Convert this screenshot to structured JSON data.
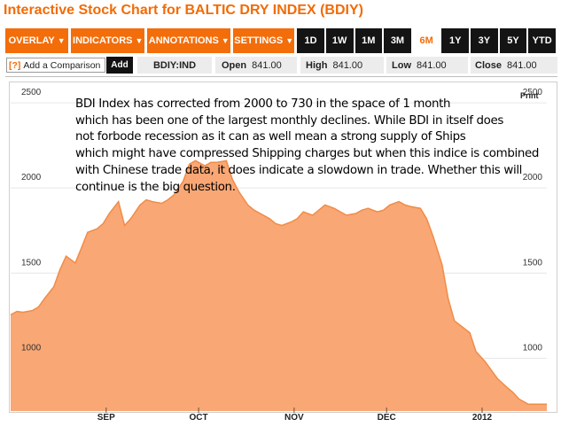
{
  "header": {
    "title": "Interactive Stock Chart for BALTIC DRY INDEX (BDIY)"
  },
  "toolbar": {
    "menus": [
      {
        "label": "OVERLAY"
      },
      {
        "label": "INDICATORS"
      },
      {
        "label": "ANNOTATIONS"
      },
      {
        "label": "SETTINGS"
      }
    ],
    "ranges": [
      "1D",
      "1W",
      "1M",
      "3M",
      "6M",
      "1Y",
      "3Y",
      "5Y",
      "YTD"
    ],
    "active_range": "6M"
  },
  "compare": {
    "icon": "[?]",
    "placeholder": "Add a Comparison",
    "add_label": "Add"
  },
  "quote": {
    "symbol": "BDIY:IND",
    "open_label": "Open",
    "open": "841.00",
    "high_label": "High",
    "high": "841.00",
    "low_label": "Low",
    "low": "841.00",
    "close_label": "Close",
    "close": "841.00"
  },
  "print_label": "Print",
  "annotation_lines": [
    "BDI Index has corrected from 2000 to 730 in the space of 1 month",
    "which has been one of the largest monthly declines. While BDI in itself does",
    "not forbode recession as it can as well mean a strong supply of Ships",
    "which might have compressed Shipping charges but when this indice is combined",
    "with Chinese trade data, it does indicate a slowdown in trade. Whether this will",
    "continue is the big question."
  ],
  "colors": {
    "accent": "#f36d0a",
    "area_fill": "#f9a774",
    "area_line": "#f08c48"
  },
  "chart_data": {
    "type": "area",
    "ylim": [
      690,
      2620
    ],
    "y_ticks": [
      1000,
      1500,
      2000,
      2500
    ],
    "x_tick_labels": [
      "SEP",
      "OCT",
      "NOV",
      "DEC",
      "2012"
    ],
    "x_tick_dates": [
      "2011-09-01",
      "2011-10-01",
      "2011-11-01",
      "2011-12-01",
      "2012-01-01"
    ],
    "xlim": [
      "2011-08-01",
      "2012-01-22"
    ],
    "x": [
      "2011-08-01",
      "2011-08-03",
      "2011-08-05",
      "2011-08-08",
      "2011-08-10",
      "2011-08-12",
      "2011-08-15",
      "2011-08-17",
      "2011-08-19",
      "2011-08-22",
      "2011-08-24",
      "2011-08-26",
      "2011-08-29",
      "2011-08-31",
      "2011-09-02",
      "2011-09-05",
      "2011-09-07",
      "2011-09-09",
      "2011-09-12",
      "2011-09-14",
      "2011-09-16",
      "2011-09-19",
      "2011-09-21",
      "2011-09-23",
      "2011-09-26",
      "2011-09-28",
      "2011-09-30",
      "2011-10-03",
      "2011-10-05",
      "2011-10-07",
      "2011-10-10",
      "2011-10-12",
      "2011-10-14",
      "2011-10-17",
      "2011-10-19",
      "2011-10-21",
      "2011-10-24",
      "2011-10-26",
      "2011-10-28",
      "2011-10-31",
      "2011-11-02",
      "2011-11-04",
      "2011-11-07",
      "2011-11-09",
      "2011-11-11",
      "2011-11-14",
      "2011-11-16",
      "2011-11-18",
      "2011-11-21",
      "2011-11-23",
      "2011-11-25",
      "2011-11-28",
      "2011-11-30",
      "2011-12-02",
      "2011-12-05",
      "2011-12-07",
      "2011-12-09",
      "2011-12-12",
      "2011-12-14",
      "2011-12-16",
      "2011-12-19",
      "2011-12-21",
      "2011-12-23",
      "2011-12-28",
      "2011-12-30",
      "2012-01-02",
      "2012-01-04",
      "2012-01-06",
      "2012-01-09",
      "2012-01-11",
      "2012-01-13",
      "2012-01-16",
      "2012-01-18",
      "2012-01-20",
      "2012-01-22"
    ],
    "y": [
      1255,
      1275,
      1270,
      1280,
      1300,
      1350,
      1420,
      1520,
      1600,
      1560,
      1650,
      1740,
      1760,
      1790,
      1850,
      1920,
      1780,
      1820,
      1900,
      1930,
      1920,
      1910,
      1930,
      1960,
      2040,
      2140,
      2160,
      2130,
      2150,
      2150,
      2160,
      2050,
      1980,
      1900,
      1870,
      1850,
      1820,
      1790,
      1780,
      1800,
      1820,
      1860,
      1840,
      1870,
      1900,
      1880,
      1860,
      1840,
      1850,
      1870,
      1880,
      1860,
      1870,
      1900,
      1920,
      1900,
      1890,
      1880,
      1820,
      1720,
      1550,
      1350,
      1220,
      1150,
      1040,
      980,
      930,
      880,
      830,
      800,
      760,
      730,
      730,
      730,
      730
    ]
  }
}
